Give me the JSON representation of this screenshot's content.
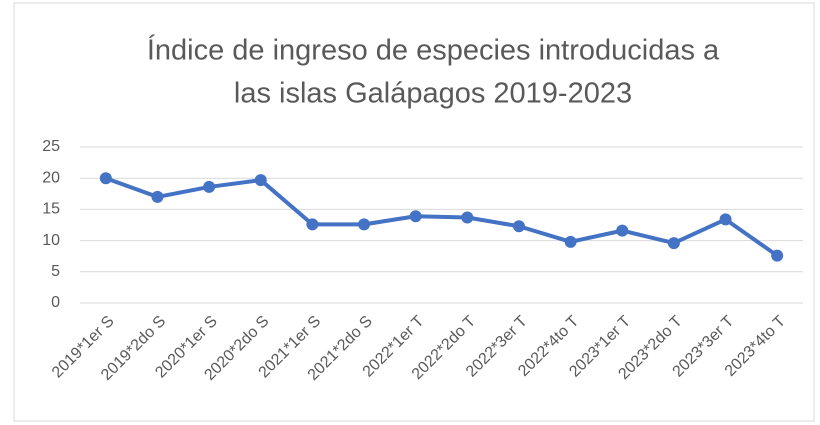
{
  "chart_data": {
    "type": "line",
    "title": [
      "Índice de ingreso de especies introducidas a",
      "las islas Galápagos 2019-2023"
    ],
    "categories": [
      "2019*1er S",
      "2019*2do S",
      "2020*1er S",
      "2020*2do S",
      "2021*1er S",
      "2021*2do S",
      "2022*1er T",
      "2022*2do T",
      "2022*3er T",
      "2022*4to T",
      "2023*1er T",
      "2023*2do T",
      "2023*3er T",
      "2023*4to T"
    ],
    "values": [
      20,
      17,
      18.6,
      19.7,
      12.6,
      12.6,
      13.9,
      13.7,
      12.3,
      9.8,
      11.6,
      9.6,
      13.4,
      7.6
    ],
    "color": "#4472c4",
    "ylim": [
      0,
      25
    ],
    "yticks": [
      0,
      5,
      10,
      15,
      20,
      25
    ],
    "grid": true
  }
}
